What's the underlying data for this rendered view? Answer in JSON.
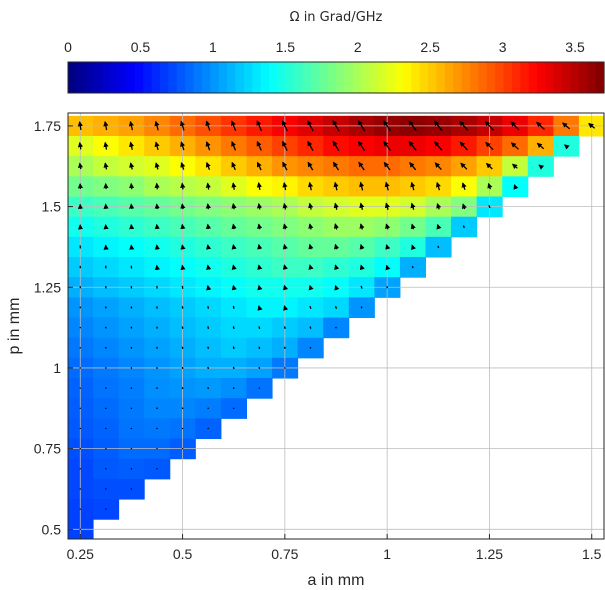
{
  "chart_data": {
    "type": "heatmap",
    "subtype": "quiver-overlay",
    "colorbar": {
      "label": "Ω in Grad/GHz",
      "range": [
        0,
        3.7
      ],
      "ticks": [
        0,
        0.5,
        1,
        1.5,
        2,
        2.5,
        3,
        3.5
      ],
      "tick_labels": [
        "0",
        "0.5",
        "1",
        "1.5",
        "2",
        "2.5",
        "3",
        "3.5"
      ],
      "colormap": "jet",
      "placement": "top"
    },
    "xlabel": "a in mm",
    "ylabel": "p in mm",
    "xlim": [
      0.22,
      1.53
    ],
    "ylim": [
      0.47,
      1.79
    ],
    "xticks": [
      0.25,
      0.5,
      0.75,
      1,
      1.25,
      1.5
    ],
    "xtick_labels": [
      "0.25",
      "0.5",
      "0.75",
      "1",
      "1.25",
      "1.5"
    ],
    "yticks": [
      0.5,
      0.75,
      1,
      1.25,
      1.5,
      1.75
    ],
    "ytick_labels": [
      "0.5",
      "0.75",
      "1",
      "1.25",
      "1.5",
      "1.75"
    ],
    "grid": true,
    "cell_size": {
      "a": 0.0625,
      "p": 0.0625
    },
    "rows": [
      {
        "p": 1.75,
        "a_max": 1.5,
        "values": [
          2.5,
          2.55,
          2.6,
          2.65,
          2.75,
          2.85,
          2.95,
          3.05,
          3.15,
          3.25,
          3.35,
          3.45,
          3.55,
          3.62,
          3.65,
          3.62,
          3.55,
          3.45,
          3.3,
          3.1,
          2.8,
          2.4
        ]
      },
      {
        "p": 1.6875,
        "a_max": 1.4375,
        "values": [
          2.1,
          2.2,
          2.3,
          2.4,
          2.5,
          2.6,
          2.7,
          2.8,
          2.9,
          3.0,
          3.1,
          3.2,
          3.25,
          3.3,
          3.3,
          3.25,
          3.15,
          3.0,
          2.85,
          2.6,
          1.5
        ]
      },
      {
        "p": 1.625,
        "a_max": 1.375,
        "values": [
          1.9,
          2.0,
          2.1,
          2.15,
          2.2,
          2.3,
          2.4,
          2.5,
          2.6,
          2.7,
          2.75,
          2.8,
          2.85,
          2.85,
          2.8,
          2.75,
          2.65,
          2.5,
          2.1,
          1.5
        ]
      },
      {
        "p": 1.5625,
        "a_max": 1.3125,
        "values": [
          1.7,
          1.8,
          1.85,
          1.9,
          2.0,
          2.05,
          2.1,
          2.2,
          2.3,
          2.35,
          2.45,
          2.5,
          2.55,
          2.55,
          2.5,
          2.45,
          2.3,
          2.0,
          1.4
        ]
      },
      {
        "p": 1.5,
        "a_max": 1.25,
        "values": [
          1.5,
          1.6,
          1.65,
          1.7,
          1.75,
          1.8,
          1.85,
          1.9,
          1.95,
          2.0,
          2.1,
          2.15,
          2.2,
          2.2,
          2.15,
          2.0,
          1.85,
          1.3
        ]
      },
      {
        "p": 1.4375,
        "a_max": 1.1875,
        "values": [
          1.35,
          1.45,
          1.5,
          1.55,
          1.6,
          1.65,
          1.7,
          1.75,
          1.8,
          1.85,
          1.9,
          1.95,
          1.95,
          1.9,
          1.8,
          1.65,
          1.2
        ]
      },
      {
        "p": 1.375,
        "a_max": 1.125,
        "values": [
          1.25,
          1.3,
          1.35,
          1.4,
          1.45,
          1.5,
          1.55,
          1.6,
          1.65,
          1.7,
          1.75,
          1.75,
          1.7,
          1.6,
          1.5,
          1.15
        ]
      },
      {
        "p": 1.3125,
        "a_max": 1.0625,
        "values": [
          1.15,
          1.2,
          1.25,
          1.3,
          1.35,
          1.4,
          1.45,
          1.5,
          1.55,
          1.6,
          1.6,
          1.55,
          1.5,
          1.4,
          1.1
        ]
      },
      {
        "p": 1.25,
        "a_max": 1.0,
        "values": [
          1.05,
          1.1,
          1.15,
          1.2,
          1.25,
          1.3,
          1.35,
          1.4,
          1.45,
          1.45,
          1.45,
          1.4,
          1.3,
          1.05
        ]
      },
      {
        "p": 1.1875,
        "a_max": 0.9375,
        "values": [
          0.95,
          1.0,
          1.05,
          1.1,
          1.15,
          1.2,
          1.25,
          1.3,
          1.35,
          1.35,
          1.3,
          1.25,
          1.0
        ]
      },
      {
        "p": 1.125,
        "a_max": 0.875,
        "values": [
          0.9,
          0.95,
          1.0,
          1.05,
          1.1,
          1.15,
          1.2,
          1.25,
          1.25,
          1.2,
          1.15,
          0.95
        ]
      },
      {
        "p": 1.0625,
        "a_max": 0.8125,
        "values": [
          0.85,
          0.9,
          0.95,
          1.0,
          1.05,
          1.1,
          1.15,
          1.2,
          1.15,
          1.1,
          0.95
        ]
      },
      {
        "p": 1.0,
        "a_max": 0.75,
        "values": [
          0.8,
          0.85,
          0.9,
          0.95,
          1.0,
          1.05,
          1.1,
          1.1,
          1.05,
          0.9
        ]
      },
      {
        "p": 0.9375,
        "a_max": 0.6875,
        "values": [
          0.78,
          0.82,
          0.88,
          0.92,
          0.98,
          1.0,
          1.02,
          0.98,
          0.88
        ]
      },
      {
        "p": 0.875,
        "a_max": 0.625,
        "values": [
          0.75,
          0.8,
          0.85,
          0.9,
          0.95,
          0.95,
          0.92,
          0.85
        ]
      },
      {
        "p": 0.8125,
        "a_max": 0.5625,
        "values": [
          0.72,
          0.78,
          0.82,
          0.88,
          0.9,
          0.88,
          0.82
        ]
      },
      {
        "p": 0.75,
        "a_max": 0.5,
        "values": [
          0.7,
          0.75,
          0.8,
          0.85,
          0.85,
          0.8
        ]
      },
      {
        "p": 0.6875,
        "a_max": 0.4375,
        "values": [
          0.7,
          0.72,
          0.78,
          0.8,
          0.78
        ]
      },
      {
        "p": 0.625,
        "a_max": 0.375,
        "values": [
          0.68,
          0.72,
          0.75,
          0.75
        ]
      },
      {
        "p": 0.5625,
        "a_max": 0.3125,
        "values": [
          0.68,
          0.7,
          0.72
        ]
      },
      {
        "p": 0.5,
        "a_max": 0.25,
        "values": [
          0.68,
          0.7
        ]
      }
    ]
  }
}
